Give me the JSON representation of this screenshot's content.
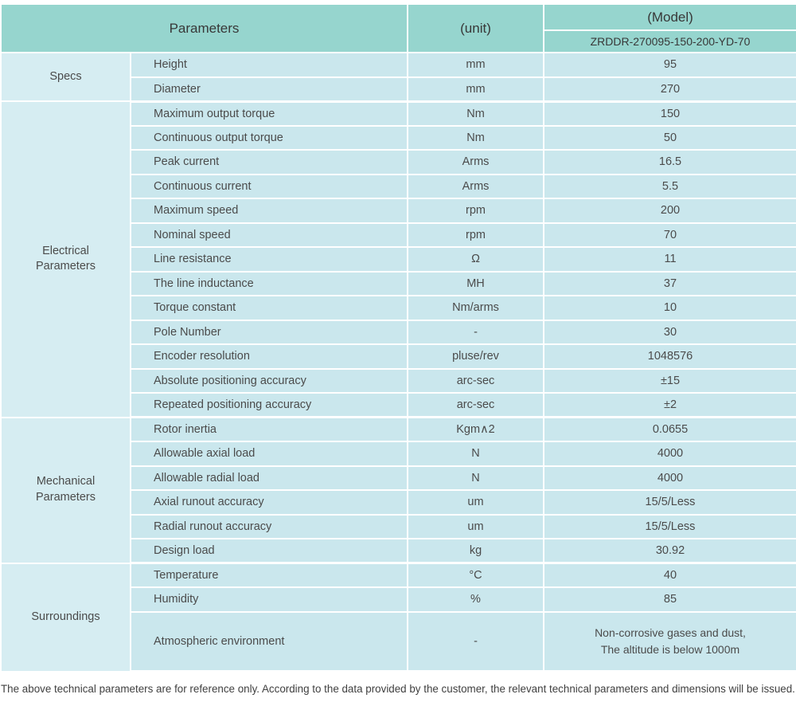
{
  "colors": {
    "header_bg": "#96d5ce",
    "row_bg": "#cae7ed",
    "group_bg": "#d6edf2",
    "border": "#ffffff",
    "text": "#4b4b4b",
    "header_text": "#383838",
    "footer_text": "#3f3f3f"
  },
  "header": {
    "parameters_label": "Parameters",
    "unit_label": "(unit)",
    "model_label": "(Model)",
    "model_value": "ZRDDR-270095-150-200-YD-70"
  },
  "groups": [
    {
      "id": "specs",
      "name": "Specs",
      "rows": [
        {
          "parameter": "Height",
          "unit": "mm",
          "value": "95"
        },
        {
          "parameter": "Diameter",
          "unit": "mm",
          "value": "270"
        }
      ]
    },
    {
      "id": "electrical-parameters",
      "name": "Electrical\nParameters",
      "rows": [
        {
          "parameter": "Maximum output torque",
          "unit": "Nm",
          "value": "150"
        },
        {
          "parameter": "Continuous output torque",
          "unit": "Nm",
          "value": "50"
        },
        {
          "parameter": "Peak current",
          "unit": "Arms",
          "value": "16.5"
        },
        {
          "parameter": "Continuous current",
          "unit": "Arms",
          "value": "5.5"
        },
        {
          "parameter": "Maximum speed",
          "unit": "rpm",
          "value": "200"
        },
        {
          "parameter": "Nominal speed",
          "unit": "rpm",
          "value": "70"
        },
        {
          "parameter": "Line resistance",
          "unit": "Ω",
          "value": "11"
        },
        {
          "parameter": "The line inductance",
          "unit": "MH",
          "value": "37"
        },
        {
          "parameter": "Torque constant",
          "unit": "Nm/arms",
          "value": "10"
        },
        {
          "parameter": "Pole Number",
          "unit": "-",
          "value": "30"
        },
        {
          "parameter": "Encoder resolution",
          "unit": "pluse/rev",
          "value": "1048576"
        },
        {
          "parameter": "Absolute positioning accuracy",
          "unit": "arc-sec",
          "value": "±15"
        },
        {
          "parameter": "Repeated positioning accuracy",
          "unit": "arc-sec",
          "value": "±2"
        }
      ]
    },
    {
      "id": "mechanical-parameters",
      "name": "Mechanical\nParameters",
      "rows": [
        {
          "parameter": "Rotor inertia",
          "unit": "Kgm∧2",
          "value": "0.0655"
        },
        {
          "parameter": "Allowable axial load",
          "unit": "N",
          "value": "4000"
        },
        {
          "parameter": "Allowable radial load",
          "unit": "N",
          "value": "4000"
        },
        {
          "parameter": "Axial runout accuracy",
          "unit": "um",
          "value": "15/5/Less"
        },
        {
          "parameter": "Radial runout accuracy",
          "unit": "um",
          "value": "15/5/Less"
        },
        {
          "parameter": "Design load",
          "unit": "kg",
          "value": "30.92"
        }
      ]
    },
    {
      "id": "surroundings",
      "name": "Surroundings",
      "rows": [
        {
          "parameter": "Temperature",
          "unit": "°C",
          "value": "40"
        },
        {
          "parameter": "Humidity",
          "unit": "%",
          "value": "85"
        },
        {
          "parameter": "Atmospheric environment",
          "unit": "-",
          "value": "Non-corrosive gases and dust,\nThe altitude is below 1000m",
          "tall": true
        }
      ]
    }
  ],
  "footer_note": "The above technical parameters are for reference only. According to the data provided by the customer, the relevant technical parameters and dimensions will be issued."
}
